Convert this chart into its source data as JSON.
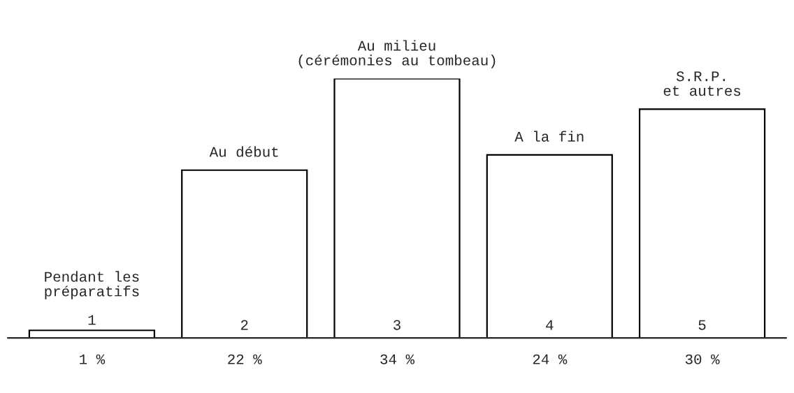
{
  "chart_data": {
    "type": "bar",
    "categories": [
      "1",
      "2",
      "3",
      "4",
      "5"
    ],
    "values": [
      1,
      22,
      34,
      24,
      30
    ],
    "value_labels": [
      "1 %",
      "22 %",
      "34 %",
      "24 %",
      "30 %"
    ],
    "color": "#ffffff",
    "annotations": [
      {
        "text": "Pendant les\npréparatifs",
        "x": "1",
        "y": 1
      },
      {
        "text": "Au début",
        "x": "2",
        "y": 22
      },
      {
        "text": "Au milieu\n(cérémonies au tombeau)",
        "x": "3",
        "y": 34
      },
      {
        "text": "A la fin",
        "x": "4",
        "y": 24
      },
      {
        "text": "S.R.P.\net autres",
        "x": "5",
        "y": 30
      }
    ]
  }
}
